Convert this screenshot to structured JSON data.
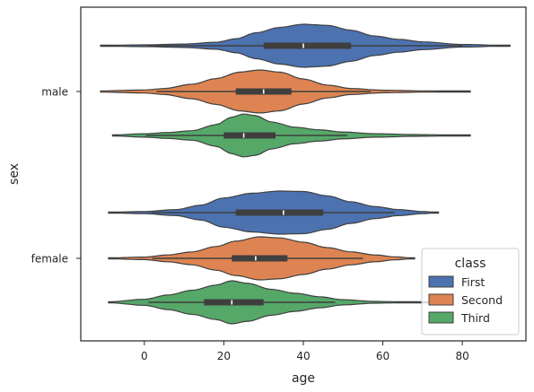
{
  "chart_data": {
    "type": "violin",
    "orientation": "horizontal",
    "xlabel": "age",
    "ylabel": "sex",
    "xlim": [
      -16,
      96
    ],
    "x_ticks": [
      0,
      20,
      40,
      60,
      80
    ],
    "categories": [
      "male",
      "female"
    ],
    "legend": {
      "title": "class",
      "position": "lower right"
    },
    "series": [
      {
        "name": "First",
        "color": "#4c72b0",
        "violins": [
          {
            "category": "male",
            "min": -11,
            "max": 92,
            "q1": 30,
            "median": 40,
            "q3": 52,
            "whisker_low": 0.9,
            "whisker_high": 80,
            "density": [
              [
                -11,
                0.02
              ],
              [
                0,
                0.04
              ],
              [
                10,
                0.08
              ],
              [
                18,
                0.16
              ],
              [
                23,
                0.32
              ],
              [
                28,
                0.6
              ],
              [
                34,
                0.85
              ],
              [
                40,
                1.0
              ],
              [
                46,
                0.95
              ],
              [
                52,
                0.72
              ],
              [
                58,
                0.45
              ],
              [
                64,
                0.3
              ],
              [
                70,
                0.18
              ],
              [
                80,
                0.06
              ],
              [
                92,
                0.01
              ]
            ]
          },
          {
            "category": "female",
            "min": -9,
            "max": 74,
            "q1": 23,
            "median": 35,
            "q3": 45,
            "whisker_low": 2,
            "whisker_high": 63,
            "density": [
              [
                -9,
                0.02
              ],
              [
                0,
                0.05
              ],
              [
                8,
                0.14
              ],
              [
                14,
                0.34
              ],
              [
                20,
                0.68
              ],
              [
                27,
                0.9
              ],
              [
                34,
                1.0
              ],
              [
                40,
                0.98
              ],
              [
                46,
                0.78
              ],
              [
                52,
                0.5
              ],
              [
                58,
                0.28
              ],
              [
                64,
                0.14
              ],
              [
                70,
                0.05
              ],
              [
                74,
                0.01
              ]
            ]
          }
        ]
      },
      {
        "name": "Second",
        "color": "#dd8452",
        "violins": [
          {
            "category": "male",
            "min": -11,
            "max": 82,
            "q1": 23,
            "median": 30,
            "q3": 37,
            "whisker_low": 3,
            "whisker_high": 57,
            "density": [
              [
                -11,
                0.03
              ],
              [
                0,
                0.07
              ],
              [
                5,
                0.14
              ],
              [
                12,
                0.34
              ],
              [
                18,
                0.6
              ],
              [
                24,
                0.9
              ],
              [
                29,
                1.0
              ],
              [
                34,
                0.9
              ],
              [
                40,
                0.58
              ],
              [
                46,
                0.3
              ],
              [
                52,
                0.14
              ],
              [
                60,
                0.06
              ],
              [
                70,
                0.03
              ],
              [
                82,
                0.01
              ]
            ]
          },
          {
            "category": "female",
            "min": -9,
            "max": 68,
            "q1": 22,
            "median": 28,
            "q3": 36,
            "whisker_low": 2,
            "whisker_high": 55,
            "density": [
              [
                -9,
                0.02
              ],
              [
                0,
                0.06
              ],
              [
                6,
                0.16
              ],
              [
                12,
                0.3
              ],
              [
                18,
                0.55
              ],
              [
                23,
                0.8
              ],
              [
                29,
                1.0
              ],
              [
                34,
                0.95
              ],
              [
                40,
                0.75
              ],
              [
                46,
                0.5
              ],
              [
                52,
                0.3
              ],
              [
                58,
                0.16
              ],
              [
                63,
                0.07
              ],
              [
                68,
                0.01
              ]
            ]
          }
        ]
      },
      {
        "name": "Third",
        "color": "#55a868",
        "violins": [
          {
            "category": "male",
            "min": -8,
            "max": 82,
            "q1": 20,
            "median": 25,
            "q3": 33,
            "whisker_low": 0.4,
            "whisker_high": 51,
            "density": [
              [
                -8,
                0.02
              ],
              [
                0,
                0.08
              ],
              [
                6,
                0.14
              ],
              [
                12,
                0.22
              ],
              [
                18,
                0.5
              ],
              [
                22,
                0.85
              ],
              [
                25,
                1.0
              ],
              [
                28,
                0.92
              ],
              [
                32,
                0.62
              ],
              [
                38,
                0.38
              ],
              [
                44,
                0.26
              ],
              [
                50,
                0.16
              ],
              [
                58,
                0.08
              ],
              [
                68,
                0.04
              ],
              [
                82,
                0.01
              ]
            ]
          },
          {
            "category": "female",
            "min": -9,
            "max": 74,
            "q1": 15,
            "median": 22,
            "q3": 30,
            "whisker_low": 1,
            "whisker_high": 48,
            "density": [
              [
                -9,
                0.02
              ],
              [
                0,
                0.14
              ],
              [
                6,
                0.34
              ],
              [
                12,
                0.56
              ],
              [
                18,
                0.8
              ],
              [
                22,
                1.0
              ],
              [
                26,
                0.88
              ],
              [
                32,
                0.6
              ],
              [
                38,
                0.42
              ],
              [
                44,
                0.26
              ],
              [
                50,
                0.12
              ],
              [
                58,
                0.04
              ],
              [
                66,
                0.02
              ],
              [
                74,
                0.01
              ]
            ]
          }
        ]
      }
    ]
  }
}
